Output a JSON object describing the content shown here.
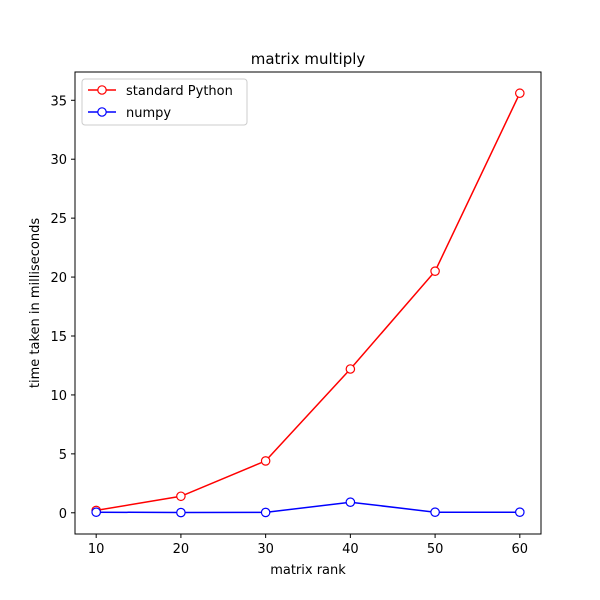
{
  "chart_data": {
    "type": "line",
    "title": "matrix multiply",
    "xlabel": "matrix rank",
    "ylabel": "time taken in milliseconds",
    "x": [
      10,
      20,
      30,
      40,
      50,
      60
    ],
    "xlim": [
      7.5,
      62.5
    ],
    "ylim": [
      -1.8,
      37.4
    ],
    "xticks": [
      10,
      20,
      30,
      40,
      50,
      60
    ],
    "yticks": [
      0,
      5,
      10,
      15,
      20,
      25,
      30,
      35
    ],
    "grid": false,
    "legend_position": "top-left",
    "series": [
      {
        "name": "standard Python",
        "color": "#ff0000",
        "values": [
          0.2,
          1.4,
          4.4,
          12.2,
          20.5,
          35.6
        ]
      },
      {
        "name": "numpy",
        "color": "#0000ff",
        "values": [
          0.05,
          0.02,
          0.03,
          0.9,
          0.05,
          0.05
        ]
      }
    ]
  }
}
